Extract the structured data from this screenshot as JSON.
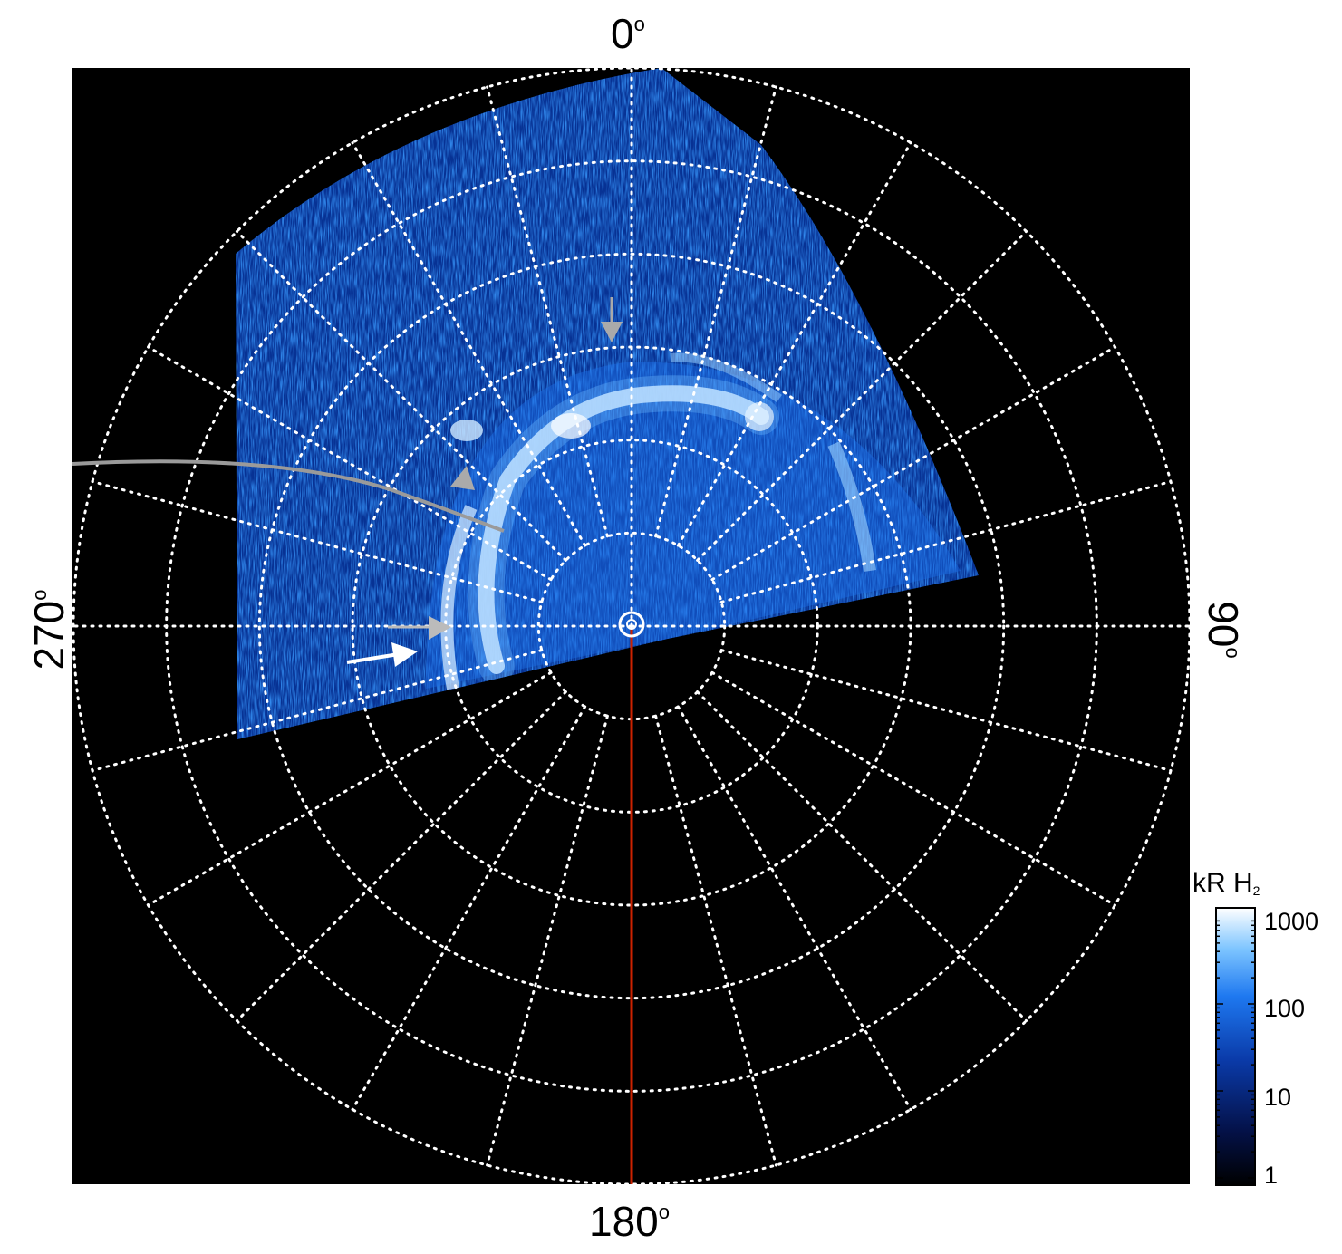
{
  "figure": {
    "type": "polar auroral projection",
    "background": "#000000",
    "grid_color": "#ffffff",
    "meridian_color": "#cc2200",
    "annotation_grey": "#aaaaaa",
    "annotation_white": "#ffffff",
    "longitude_labels": {
      "top": "0",
      "right": "90",
      "bottom": "180",
      "left": "270",
      "degree_symbol": "o"
    },
    "grid": {
      "rings": 6,
      "spokes": 24,
      "style": "dotted"
    }
  },
  "colorbar": {
    "title_main": "kR H",
    "title_sub": "2",
    "scale": "log",
    "ticks": [
      "1000",
      "100",
      "10",
      "1"
    ],
    "colors": [
      "#000000",
      "#04124a",
      "#0a3aa8",
      "#1e78f0",
      "#7cc4ff",
      "#ffffff"
    ]
  }
}
